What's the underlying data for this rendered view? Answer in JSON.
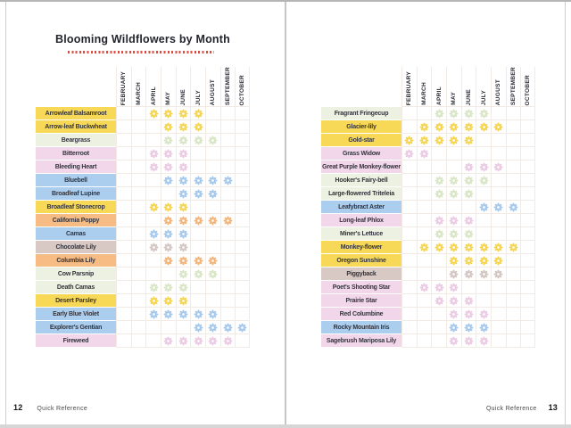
{
  "title": "Blooming Wildflowers by Month",
  "accent_color": "#dd4b3a",
  "palette": {
    "yellow": {
      "label_bg": "#f8d957",
      "flower": "#f4d44f"
    },
    "green": {
      "label_bg": "#edf1e2",
      "flower": "#d8e5c5"
    },
    "pink": {
      "label_bg": "#f2d7ea",
      "flower": "#eac9e2"
    },
    "blue": {
      "label_bg": "#abcdee",
      "flower": "#a4c7ec"
    },
    "orange": {
      "label_bg": "#f6bc83",
      "flower": "#f2b377"
    },
    "taupe": {
      "label_bg": "#d8c9c5",
      "flower": "#d2c5c1"
    }
  },
  "chart_data": {
    "type": "heatmap",
    "months": [
      "FEBRUARY",
      "MARCH",
      "APRIL",
      "MAY",
      "JUNE",
      "JULY",
      "AUGUST",
      "SEPTEMBER",
      "OCTOBER"
    ],
    "pages": [
      {
        "page_number": "12",
        "section_label": "Quick Reference",
        "rows": [
          {
            "name": "Arrowleaf Balsamroot",
            "color": "yellow",
            "bloom_months": [
              "APRIL",
              "MAY",
              "JUNE",
              "JULY"
            ]
          },
          {
            "name": "Arrow-leaf Buckwheat",
            "color": "yellow",
            "bloom_months": [
              "MAY",
              "JUNE",
              "JULY"
            ]
          },
          {
            "name": "Beargrass",
            "color": "green",
            "bloom_months": [
              "MAY",
              "JUNE",
              "JULY",
              "AUGUST"
            ]
          },
          {
            "name": "Bitterroot",
            "color": "pink",
            "bloom_months": [
              "APRIL",
              "MAY",
              "JUNE"
            ]
          },
          {
            "name": "Bleeding Heart",
            "color": "pink",
            "bloom_months": [
              "APRIL",
              "MAY",
              "JUNE"
            ]
          },
          {
            "name": "Bluebell",
            "color": "blue",
            "bloom_months": [
              "MAY",
              "JUNE",
              "JULY",
              "AUGUST",
              "SEPTEMBER"
            ]
          },
          {
            "name": "Broadleaf Lupine",
            "color": "blue",
            "bloom_months": [
              "JUNE",
              "JULY",
              "AUGUST"
            ]
          },
          {
            "name": "Broadleaf Stonecrop",
            "color": "yellow",
            "bloom_months": [
              "APRIL",
              "MAY",
              "JUNE"
            ]
          },
          {
            "name": "California Poppy",
            "color": "orange",
            "bloom_months": [
              "MAY",
              "JUNE",
              "JULY",
              "AUGUST",
              "SEPTEMBER"
            ]
          },
          {
            "name": "Camas",
            "color": "blue",
            "bloom_months": [
              "APRIL",
              "MAY",
              "JUNE"
            ]
          },
          {
            "name": "Chocolate Lily",
            "color": "taupe",
            "bloom_months": [
              "APRIL",
              "MAY",
              "JUNE"
            ]
          },
          {
            "name": "Columbia Lily",
            "color": "orange",
            "bloom_months": [
              "MAY",
              "JUNE",
              "JULY",
              "AUGUST"
            ]
          },
          {
            "name": "Cow Parsnip",
            "color": "green",
            "bloom_months": [
              "JUNE",
              "JULY",
              "AUGUST"
            ]
          },
          {
            "name": "Death Camas",
            "color": "green",
            "bloom_months": [
              "APRIL",
              "MAY",
              "JUNE"
            ]
          },
          {
            "name": "Desert Parsley",
            "color": "yellow",
            "bloom_months": [
              "APRIL",
              "MAY",
              "JUNE"
            ]
          },
          {
            "name": "Early Blue Violet",
            "color": "blue",
            "bloom_months": [
              "APRIL",
              "MAY",
              "JUNE",
              "JULY",
              "AUGUST"
            ]
          },
          {
            "name": "Explorer's Gentian",
            "color": "blue",
            "bloom_months": [
              "JULY",
              "AUGUST",
              "SEPTEMBER",
              "OCTOBER"
            ]
          },
          {
            "name": "Fireweed",
            "color": "pink",
            "bloom_months": [
              "MAY",
              "JUNE",
              "JULY",
              "AUGUST",
              "SEPTEMBER"
            ]
          }
        ]
      },
      {
        "page_number": "13",
        "section_label": "Quick Reference",
        "rows": [
          {
            "name": "Fragrant Fringecup",
            "color": "green",
            "bloom_months": [
              "APRIL",
              "MAY",
              "JUNE",
              "JULY"
            ]
          },
          {
            "name": "Glacier-lily",
            "color": "yellow",
            "bloom_months": [
              "MARCH",
              "APRIL",
              "MAY",
              "JUNE",
              "JULY",
              "AUGUST"
            ]
          },
          {
            "name": "Gold-star",
            "color": "yellow",
            "bloom_months": [
              "FEBRUARY",
              "MARCH",
              "APRIL",
              "MAY",
              "JUNE"
            ]
          },
          {
            "name": "Grass Widow",
            "color": "pink",
            "bloom_months": [
              "FEBRUARY",
              "MARCH"
            ]
          },
          {
            "name": "Great Purple Monkey-flower",
            "color": "pink",
            "bloom_months": [
              "JUNE",
              "JULY",
              "AUGUST"
            ]
          },
          {
            "name": "Hooker's Fairy-bell",
            "color": "green",
            "bloom_months": [
              "APRIL",
              "MAY",
              "JUNE",
              "JULY"
            ]
          },
          {
            "name": "Large-flowered Triteleia",
            "color": "green",
            "bloom_months": [
              "APRIL",
              "MAY",
              "JUNE"
            ]
          },
          {
            "name": "Leafybract Aster",
            "color": "blue",
            "bloom_months": [
              "JULY",
              "AUGUST",
              "SEPTEMBER"
            ]
          },
          {
            "name": "Long-leaf Phlox",
            "color": "pink",
            "bloom_months": [
              "APRIL",
              "MAY",
              "JUNE"
            ]
          },
          {
            "name": "Miner's Lettuce",
            "color": "green",
            "bloom_months": [
              "APRIL",
              "MAY",
              "JUNE"
            ]
          },
          {
            "name": "Monkey-flower",
            "color": "yellow",
            "bloom_months": [
              "MARCH",
              "APRIL",
              "MAY",
              "JUNE",
              "JULY",
              "AUGUST",
              "SEPTEMBER"
            ]
          },
          {
            "name": "Oregon Sunshine",
            "color": "yellow",
            "bloom_months": [
              "MAY",
              "JUNE",
              "JULY",
              "AUGUST"
            ]
          },
          {
            "name": "Piggyback",
            "color": "taupe",
            "bloom_months": [
              "MAY",
              "JUNE",
              "JULY",
              "AUGUST"
            ]
          },
          {
            "name": "Poet's Shooting Star",
            "color": "pink",
            "bloom_months": [
              "MARCH",
              "APRIL",
              "MAY"
            ]
          },
          {
            "name": "Prairie Star",
            "color": "pink",
            "bloom_months": [
              "APRIL",
              "MAY",
              "JUNE"
            ]
          },
          {
            "name": "Red Columbine",
            "color": "pink",
            "bloom_months": [
              "MAY",
              "JUNE",
              "JULY"
            ]
          },
          {
            "name": "Rocky Mountain Iris",
            "color": "blue",
            "bloom_months": [
              "MAY",
              "JUNE",
              "JULY"
            ]
          },
          {
            "name": "Sagebrush Mariposa Lily",
            "color": "pink",
            "bloom_months": [
              "MAY",
              "JUNE",
              "JULY"
            ]
          }
        ]
      }
    ]
  }
}
